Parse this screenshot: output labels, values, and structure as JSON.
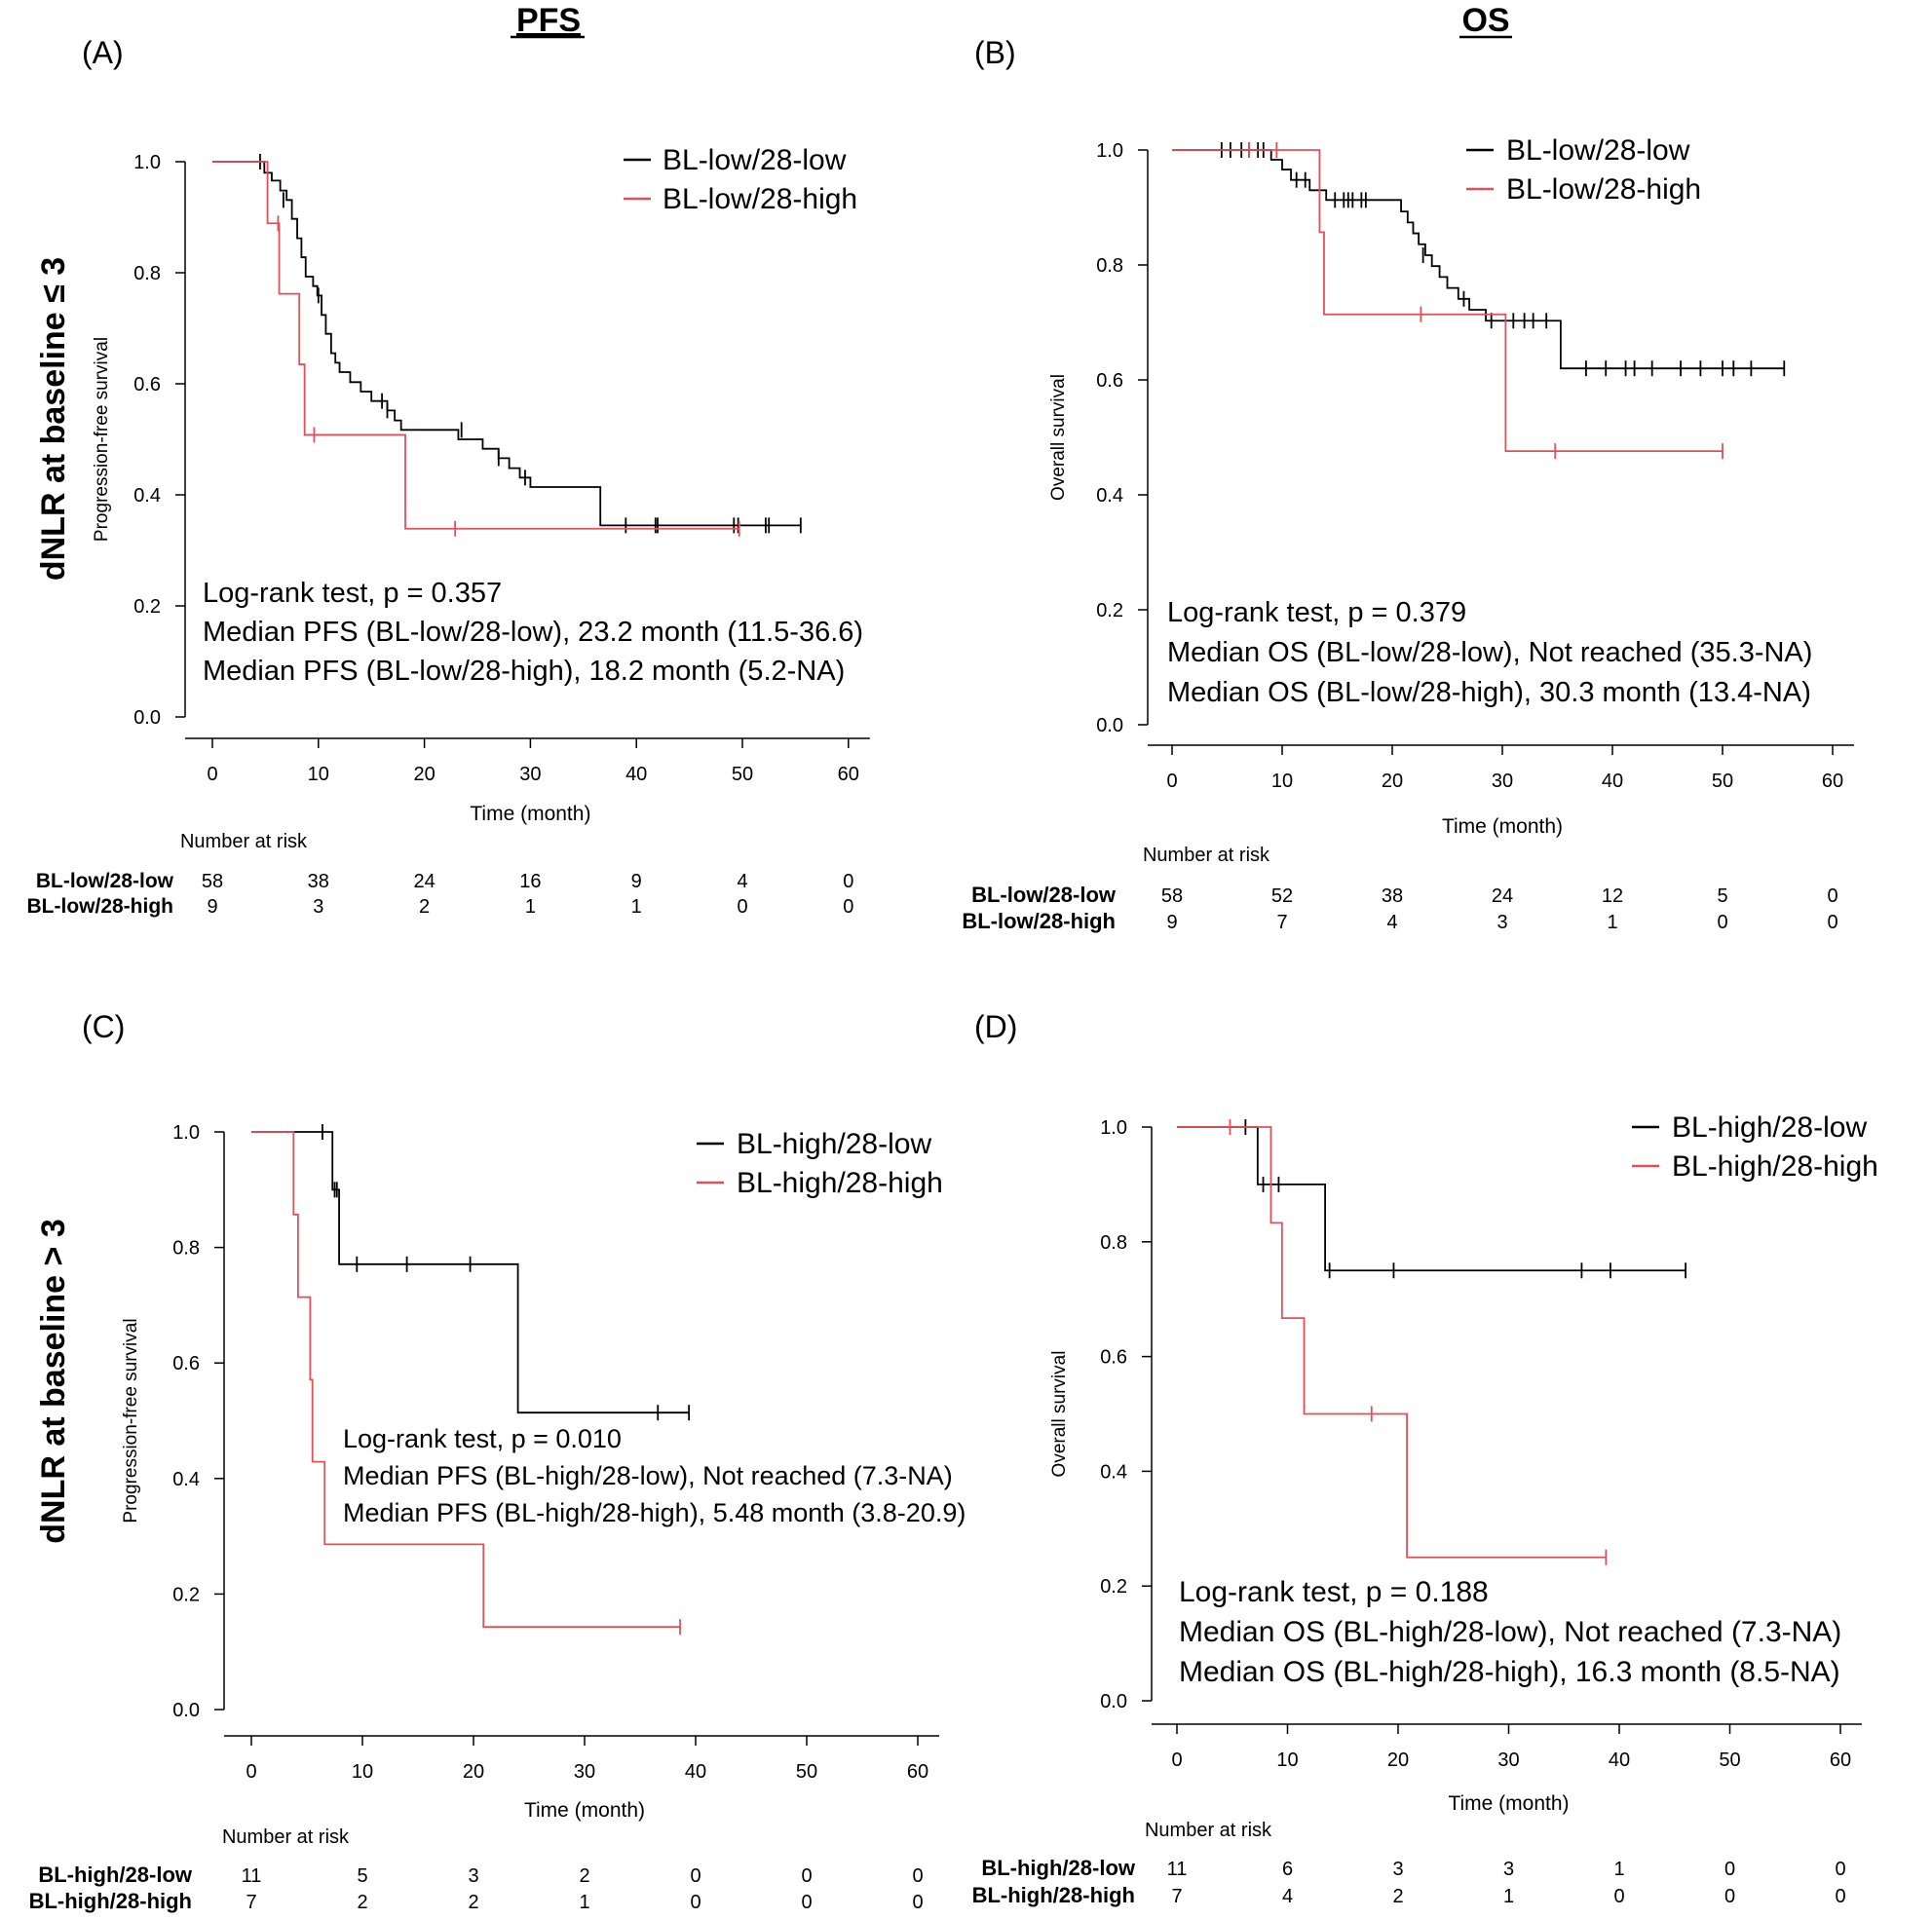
{
  "figure": {
    "col_headers": [
      "PFS",
      "OS"
    ],
    "row_labels": [
      "dNLR at baseline ≤ 3",
      "dNLR at baseline > 3"
    ]
  },
  "colors": {
    "low28": "#000000",
    "high28": "#e0505a"
  },
  "chart_data": [
    {
      "type": "line",
      "panel": "(A)",
      "ylabel": "Progression-free survival",
      "xlabel": "Time (month)",
      "xticks": [
        0,
        10,
        20,
        30,
        40,
        50,
        60
      ],
      "yticks": [
        "0.0",
        "0.2",
        "0.4",
        "0.6",
        "0.8",
        "1.0"
      ],
      "xlim": [
        0,
        60
      ],
      "ylim": [
        0,
        1
      ],
      "legend_position": "top-right",
      "series": [
        {
          "name": "BL-low/28-low",
          "color": "black",
          "steps": [
            [
              0,
              1.0
            ],
            [
              4.9,
              0.98
            ],
            [
              5.6,
              0.966
            ],
            [
              6.4,
              0.948
            ],
            [
              7.0,
              0.931
            ],
            [
              7.5,
              0.897
            ],
            [
              8.0,
              0.862
            ],
            [
              8.4,
              0.828
            ],
            [
              8.8,
              0.793
            ],
            [
              9.5,
              0.776
            ],
            [
              9.9,
              0.759
            ],
            [
              10.3,
              0.724
            ],
            [
              10.7,
              0.69
            ],
            [
              11.2,
              0.655
            ],
            [
              11.6,
              0.638
            ],
            [
              12.0,
              0.621
            ],
            [
              13.0,
              0.603
            ],
            [
              14.0,
              0.586
            ],
            [
              15.0,
              0.569
            ],
            [
              16.5,
              0.552
            ],
            [
              17.2,
              0.534
            ],
            [
              17.8,
              0.517
            ],
            [
              23.2,
              0.5
            ],
            [
              25.5,
              0.483
            ],
            [
              27.0,
              0.466
            ],
            [
              28.0,
              0.448
            ],
            [
              29.0,
              0.431
            ],
            [
              30.0,
              0.414
            ],
            [
              36.6,
              0.345
            ]
          ],
          "censors": [
            [
              4.5,
              1.0
            ],
            [
              6.7,
              0.931
            ],
            [
              10.0,
              0.759
            ],
            [
              16.0,
              0.569
            ],
            [
              16.5,
              0.552
            ],
            [
              23.5,
              0.517
            ],
            [
              27.0,
              0.466
            ],
            [
              29.5,
              0.431
            ],
            [
              39.0,
              0.345
            ],
            [
              41.8,
              0.345
            ],
            [
              42.0,
              0.345
            ],
            [
              49.2,
              0.345
            ],
            [
              49.6,
              0.345
            ],
            [
              52.2,
              0.345
            ],
            [
              52.5,
              0.345
            ],
            [
              55.5,
              0.345
            ]
          ],
          "end": 55.5
        },
        {
          "name": "BL-low/28-high",
          "color": "red",
          "steps": [
            [
              0,
              1.0
            ],
            [
              5.2,
              0.889
            ],
            [
              6.3,
              0.762
            ],
            [
              8.2,
              0.635
            ],
            [
              8.7,
              0.508
            ],
            [
              18.2,
              0.339
            ]
          ],
          "censors": [
            [
              6.2,
              0.889
            ],
            [
              9.6,
              0.508
            ],
            [
              22.9,
              0.339
            ],
            [
              49.7,
              0.339
            ]
          ],
          "end": 49.7
        }
      ],
      "annotations": [
        "Log-rank test, p = 0.357",
        "Median PFS (BL-low/28-low), 23.2 month (11.5-36.6)",
        "Median PFS (BL-low/28-high), 18.2 month (5.2-NA)"
      ],
      "risk_table": {
        "title": "Number at risk",
        "rows": [
          {
            "label": "BL-low/28-low",
            "values": [
              "58",
              "38",
              "24",
              "16",
              "9",
              "4",
              "0"
            ]
          },
          {
            "label": "BL-low/28-high",
            "values": [
              "9",
              "3",
              "2",
              "1",
              "1",
              "0",
              "0"
            ]
          }
        ]
      }
    },
    {
      "type": "line",
      "panel": "(B)",
      "ylabel": "Overall survival",
      "xlabel": "Time (month)",
      "xticks": [
        0,
        10,
        20,
        30,
        40,
        50,
        60
      ],
      "yticks": [
        "0.0",
        "0.2",
        "0.4",
        "0.6",
        "0.8",
        "1.0"
      ],
      "xlim": [
        0,
        60
      ],
      "ylim": [
        0,
        1
      ],
      "legend_position": "top-right",
      "series": [
        {
          "name": "BL-low/28-low",
          "color": "black",
          "steps": [
            [
              0,
              1.0
            ],
            [
              9.0,
              0.983
            ],
            [
              10.0,
              0.966
            ],
            [
              10.8,
              0.948
            ],
            [
              12.5,
              0.93
            ],
            [
              14.0,
              0.913
            ],
            [
              20.8,
              0.893
            ],
            [
              21.4,
              0.874
            ],
            [
              21.9,
              0.855
            ],
            [
              22.4,
              0.836
            ],
            [
              23.0,
              0.817
            ],
            [
              23.6,
              0.798
            ],
            [
              24.3,
              0.779
            ],
            [
              25.0,
              0.76
            ],
            [
              26.0,
              0.741
            ],
            [
              27.0,
              0.722
            ],
            [
              28.5,
              0.703
            ],
            [
              35.3,
              0.62
            ]
          ],
          "censors": [
            [
              4.5,
              1.0
            ],
            [
              5.3,
              1.0
            ],
            [
              6.3,
              1.0
            ],
            [
              7.0,
              1.0
            ],
            [
              7.8,
              1.0
            ],
            [
              8.3,
              1.0
            ],
            [
              11.3,
              0.948
            ],
            [
              12.1,
              0.948
            ],
            [
              14.8,
              0.913
            ],
            [
              15.6,
              0.913
            ],
            [
              16.0,
              0.913
            ],
            [
              16.4,
              0.913
            ],
            [
              17.2,
              0.913
            ],
            [
              17.6,
              0.913
            ],
            [
              22.8,
              0.817
            ],
            [
              26.5,
              0.741
            ],
            [
              29.0,
              0.703
            ],
            [
              31.0,
              0.703
            ],
            [
              32.0,
              0.703
            ],
            [
              32.8,
              0.703
            ],
            [
              34.0,
              0.703
            ],
            [
              37.6,
              0.62
            ],
            [
              39.4,
              0.62
            ],
            [
              41.2,
              0.62
            ],
            [
              42.0,
              0.62
            ],
            [
              43.6,
              0.62
            ],
            [
              46.2,
              0.62
            ],
            [
              48.0,
              0.62
            ],
            [
              50.0,
              0.62
            ],
            [
              51.0,
              0.62
            ],
            [
              52.6,
              0.62
            ],
            [
              55.6,
              0.62
            ]
          ],
          "end": 55.6
        },
        {
          "name": "BL-low/28-high",
          "color": "red",
          "steps": [
            [
              0,
              1.0
            ],
            [
              13.4,
              0.857
            ],
            [
              13.8,
              0.714
            ],
            [
              30.3,
              0.476
            ]
          ],
          "censors": [
            [
              7.0,
              1.0
            ],
            [
              9.5,
              1.0
            ],
            [
              22.6,
              0.714
            ],
            [
              34.8,
              0.476
            ],
            [
              50.0,
              0.476
            ]
          ],
          "end": 50.0
        }
      ],
      "annotations": [
        "Log-rank test, p = 0.379",
        "Median OS (BL-low/28-low), Not reached (35.3-NA)",
        "Median OS (BL-low/28-high), 30.3 month (13.4-NA)"
      ],
      "risk_table": {
        "title": "Number at risk",
        "rows": [
          {
            "label": "BL-low/28-low",
            "values": [
              "58",
              "52",
              "38",
              "24",
              "12",
              "5",
              "0"
            ]
          },
          {
            "label": "BL-low/28-high",
            "values": [
              "9",
              "7",
              "4",
              "3",
              "1",
              "0",
              "0"
            ]
          }
        ]
      }
    },
    {
      "type": "line",
      "panel": "(C)",
      "ylabel": "Progression-free survival",
      "xlabel": "Time (month)",
      "xticks": [
        0,
        10,
        20,
        30,
        40,
        50,
        60
      ],
      "yticks": [
        "0.0",
        "0.2",
        "0.4",
        "0.6",
        "0.8",
        "1.0"
      ],
      "xlim": [
        0,
        60
      ],
      "ylim": [
        0,
        1
      ],
      "legend_position": "top-right",
      "series": [
        {
          "name": "BL-high/28-low",
          "color": "black",
          "steps": [
            [
              0,
              1.0
            ],
            [
              7.3,
              0.9
            ],
            [
              7.9,
              0.771
            ],
            [
              24.0,
              0.514
            ]
          ],
          "censors": [
            [
              6.4,
              1.0
            ],
            [
              7.5,
              0.9
            ],
            [
              7.7,
              0.9
            ],
            [
              9.5,
              0.771
            ],
            [
              14.0,
              0.771
            ],
            [
              19.7,
              0.771
            ],
            [
              36.6,
              0.514
            ],
            [
              39.4,
              0.514
            ]
          ],
          "end": 39.4
        },
        {
          "name": "BL-high/28-high",
          "color": "red",
          "steps": [
            [
              0,
              1.0
            ],
            [
              3.8,
              0.857
            ],
            [
              4.2,
              0.714
            ],
            [
              5.3,
              0.571
            ],
            [
              5.5,
              0.429
            ],
            [
              6.6,
              0.286
            ],
            [
              20.9,
              0.143
            ]
          ],
          "censors": [
            [
              38.6,
              0.143
            ]
          ],
          "end": 38.6
        }
      ],
      "annotations": [
        "Log-rank test, p = 0.010",
        "Median PFS (BL-high/28-low), Not reached (7.3-NA)",
        "Median PFS (BL-high/28-high), 5.48 month (3.8-20.9)"
      ],
      "risk_table": {
        "title": "Number at risk",
        "rows": [
          {
            "label": "BL-high/28-low",
            "values": [
              "11",
              "5",
              "3",
              "2",
              "0",
              "0",
              "0"
            ]
          },
          {
            "label": "BL-high/28-high",
            "values": [
              "7",
              "2",
              "2",
              "1",
              "0",
              "0",
              "0"
            ]
          }
        ]
      }
    },
    {
      "type": "line",
      "panel": "(D)",
      "ylabel": "Overall survival",
      "xlabel": "Time (month)",
      "xticks": [
        0,
        10,
        20,
        30,
        40,
        50,
        60
      ],
      "yticks": [
        "0.0",
        "0.2",
        "0.4",
        "0.6",
        "0.8",
        "1.0"
      ],
      "xlim": [
        0,
        60
      ],
      "ylim": [
        0,
        1
      ],
      "legend_position": "top-right",
      "series": [
        {
          "name": "BL-high/28-low",
          "color": "black",
          "steps": [
            [
              0,
              1.0
            ],
            [
              7.3,
              0.9
            ],
            [
              13.4,
              0.75
            ]
          ],
          "censors": [
            [
              6.2,
              1.0
            ],
            [
              7.8,
              0.9
            ],
            [
              9.2,
              0.9
            ],
            [
              13.8,
              0.75
            ],
            [
              19.6,
              0.75
            ],
            [
              36.6,
              0.75
            ],
            [
              39.2,
              0.75
            ],
            [
              46.0,
              0.75
            ]
          ],
          "end": 46.0
        },
        {
          "name": "BL-high/28-high",
          "color": "red",
          "steps": [
            [
              0,
              1.0
            ],
            [
              8.5,
              0.833
            ],
            [
              9.5,
              0.667
            ],
            [
              11.5,
              0.5
            ],
            [
              20.8,
              0.25
            ]
          ],
          "censors": [
            [
              4.8,
              1.0
            ],
            [
              17.6,
              0.5
            ],
            [
              38.8,
              0.25
            ]
          ],
          "end": 38.8
        }
      ],
      "annotations": [
        "Log-rank test, p = 0.188",
        "Median OS (BL-high/28-low), Not reached (7.3-NA)",
        "Median OS (BL-high/28-high), 16.3 month (8.5-NA)"
      ],
      "risk_table": {
        "title": "Number at risk",
        "rows": [
          {
            "label": "BL-high/28-low",
            "values": [
              "11",
              "6",
              "3",
              "3",
              "1",
              "0",
              "0"
            ]
          },
          {
            "label": "BL-high/28-high",
            "values": [
              "7",
              "4",
              "2",
              "1",
              "0",
              "0",
              "0"
            ]
          }
        ]
      }
    }
  ]
}
